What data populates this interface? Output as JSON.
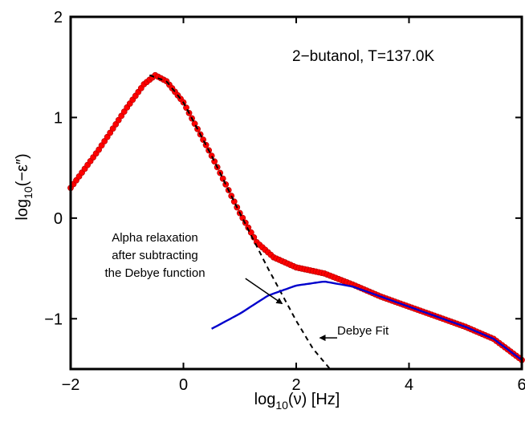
{
  "chart_data": {
    "type": "scatter",
    "title": "",
    "inset_label": "2−butanol, T=137.0K",
    "xlabel": {
      "base": "log",
      "sub": "10",
      "rest": "(ν) [Hz]"
    },
    "ylabel": {
      "base": "log",
      "sub": "10",
      "rest": "(−ε″)"
    },
    "xlim": [
      -2,
      6
    ],
    "ylim": [
      -1.5,
      2
    ],
    "xticks": [
      -2,
      0,
      2,
      4,
      6
    ],
    "xtick_labels": [
      "−2",
      "0",
      "2",
      "4",
      "6"
    ],
    "yticks": [
      -1,
      0,
      1,
      2
    ],
    "ytick_labels": [
      "−1",
      "0",
      "1",
      "2"
    ],
    "grid": false,
    "series": [
      {
        "kind": "markers",
        "color": "#ff0000",
        "x": [
          -2.0,
          -1.5,
          -1.0,
          -0.7,
          -0.5,
          -0.3,
          0.0,
          0.5,
          1.0,
          1.3,
          1.6,
          2.0,
          2.5,
          3.0,
          3.5,
          4.0,
          4.5,
          5.0,
          5.5,
          6.0
        ],
        "y": [
          0.3,
          0.68,
          1.1,
          1.33,
          1.42,
          1.36,
          1.15,
          0.62,
          0.05,
          -0.24,
          -0.39,
          -0.49,
          -0.55,
          -0.66,
          -0.78,
          -0.88,
          -0.98,
          -1.08,
          -1.2,
          -1.41
        ]
      },
      {
        "kind": "dashed-line",
        "color": "#000000",
        "x": [
          -0.6,
          -0.3,
          0.0,
          0.5,
          1.0,
          1.5,
          2.0,
          2.3,
          2.6
        ],
        "y": [
          1.42,
          1.36,
          1.15,
          0.62,
          0.05,
          -0.5,
          -1.02,
          -1.3,
          -1.5
        ]
      },
      {
        "kind": "line",
        "color": "#0000cc",
        "x": [
          0.5,
          1.0,
          1.5,
          2.0,
          2.5,
          3.0,
          3.5,
          4.0,
          4.5,
          5.0,
          5.5,
          6.0
        ],
        "y": [
          -1.1,
          -0.95,
          -0.77,
          -0.67,
          -0.63,
          -0.68,
          -0.78,
          -0.88,
          -0.98,
          -1.08,
          -1.2,
          -1.41
        ]
      }
    ],
    "annotations": [
      {
        "lines": [
          "Alpha relaxation",
          "after subtracting",
          "the Debye function"
        ],
        "arrow_from": [
          1.1,
          -0.6
        ],
        "arrow_to": [
          1.75,
          -0.85
        ]
      },
      {
        "lines": [
          "Debye Fit"
        ],
        "arrow_to": [
          2.42,
          -1.19
        ]
      }
    ]
  }
}
